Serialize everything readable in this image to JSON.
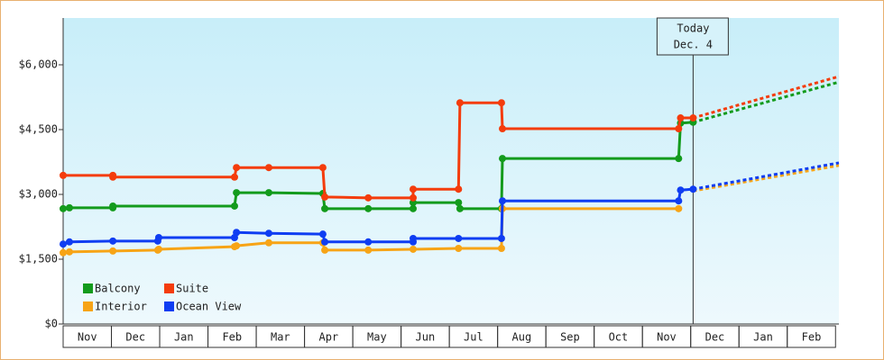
{
  "chart_data": {
    "type": "line",
    "categories": [
      "Nov",
      "Dec",
      "Jan",
      "Feb",
      "Mar",
      "Apr",
      "May",
      "Jun",
      "Jul",
      "Aug",
      "Sep",
      "Oct",
      "Nov",
      "Dec",
      "Jan",
      "Feb"
    ],
    "xlim": [
      0,
      16.07
    ],
    "ylim": [
      0,
      7083
    ],
    "yticks": [
      {
        "value": 0,
        "label": "$0"
      },
      {
        "value": 1500,
        "label": "$1,500"
      },
      {
        "value": 3000,
        "label": "$3,000"
      },
      {
        "value": 4500,
        "label": "$4,500"
      },
      {
        "value": 6000,
        "label": "$6,000"
      }
    ],
    "legend": "lower left",
    "annotation": {
      "x": 13.05,
      "lines": [
        "Today",
        "Dec. 4"
      ]
    },
    "series": [
      {
        "name": "Balcony",
        "color": "#139b1c",
        "x": [
          0,
          0.13,
          1.03,
          1.03,
          3.55,
          3.59,
          4.26,
          5.38,
          5.42,
          6.32,
          7.25,
          7.25,
          8.19,
          8.22,
          9.08,
          9.1,
          12.75,
          12.79,
          13.05
        ],
        "values": [
          2670,
          2690,
          2690,
          2730,
          2730,
          3040,
          3040,
          3020,
          2670,
          2670,
          2670,
          2810,
          2810,
          2670,
          2670,
          3830,
          3830,
          4650,
          4670
        ],
        "forecast": {
          "x": [
            13.05,
            16.07
          ],
          "values": [
            4670,
            5600
          ]
        }
      },
      {
        "name": "Suite",
        "color": "#f43c0c",
        "x": [
          0,
          1.03,
          1.03,
          3.55,
          3.59,
          4.26,
          5.38,
          5.42,
          6.32,
          7.25,
          7.25,
          8.19,
          8.22,
          9.08,
          9.1,
          12.75,
          12.79,
          13.05
        ],
        "values": [
          3440,
          3440,
          3400,
          3400,
          3620,
          3620,
          3620,
          2940,
          2920,
          2920,
          3120,
          3120,
          5120,
          5120,
          4520,
          4520,
          4770,
          4770
        ],
        "forecast": {
          "x": [
            13.05,
            16.07
          ],
          "values": [
            4770,
            5730
          ]
        }
      },
      {
        "name": "Interior",
        "color": "#f7a416",
        "x": [
          0,
          0.13,
          1.03,
          1.96,
          1.98,
          3.55,
          3.59,
          4.26,
          5.38,
          5.42,
          6.32,
          7.25,
          8.19,
          9.08,
          9.1,
          12.75
        ],
        "values": [
          1650,
          1670,
          1690,
          1710,
          1730,
          1790,
          1810,
          1880,
          1880,
          1710,
          1710,
          1730,
          1750,
          1750,
          2670,
          2670
        ],
        "forecast": {
          "x": [
            13.05,
            16.07
          ],
          "values": [
            3080,
            3670
          ]
        }
      },
      {
        "name": "Ocean View",
        "color": "#0f3df2",
        "x": [
          0,
          0.13,
          1.03,
          1.96,
          1.98,
          3.55,
          3.59,
          4.26,
          5.38,
          5.42,
          6.32,
          7.25,
          7.25,
          8.19,
          9.08,
          9.1,
          12.75,
          12.79,
          13.05
        ],
        "values": [
          1850,
          1900,
          1920,
          1920,
          2000,
          2000,
          2120,
          2100,
          2080,
          1900,
          1900,
          1900,
          1980,
          1980,
          1980,
          2850,
          2850,
          3100,
          3120
        ],
        "forecast": {
          "x": [
            13.05,
            16.07
          ],
          "values": [
            3120,
            3730
          ]
        }
      }
    ]
  }
}
